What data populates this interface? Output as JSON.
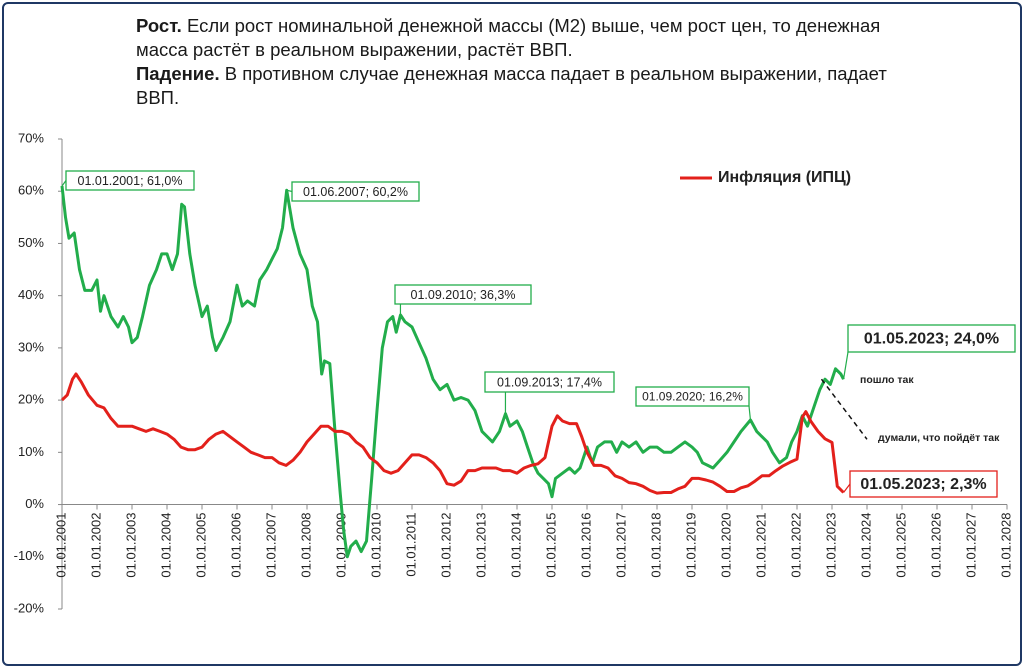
{
  "header": {
    "growth_label": "Рост.",
    "growth_text": "Если рост номинальной денежной массы (М2) выше, чем рост цен,  то денежная масса растёт в реальном выражении, растёт ВВП.",
    "fall_label": "Падение.",
    "fall_text": "В противном случае денежная масса падает в реальном выражении, падает ВВП."
  },
  "chart_data": {
    "type": "line",
    "xlim": [
      2001,
      2028
    ],
    "ylim": [
      -20,
      70
    ],
    "yticks": [
      {
        "value": -20,
        "label": "-20%"
      },
      {
        "value": -10,
        "label": "-10%"
      },
      {
        "value": 0,
        "label": "0%"
      },
      {
        "value": 10,
        "label": "10%"
      },
      {
        "value": 20,
        "label": "20%"
      },
      {
        "value": 30,
        "label": "30%"
      },
      {
        "value": 40,
        "label": "40%"
      },
      {
        "value": 50,
        "label": "50%"
      },
      {
        "value": 60,
        "label": "60%"
      },
      {
        "value": 70,
        "label": "70%"
      }
    ],
    "xticks": [
      {
        "value": 2001,
        "label": "01.01.2001"
      },
      {
        "value": 2002,
        "label": "01.01.2002"
      },
      {
        "value": 2003,
        "label": "01.01.2003"
      },
      {
        "value": 2004,
        "label": "01.01.2004"
      },
      {
        "value": 2005,
        "label": "01.01.2005"
      },
      {
        "value": 2006,
        "label": "01.01.2006"
      },
      {
        "value": 2007,
        "label": "01.01.2007"
      },
      {
        "value": 2008,
        "label": "01.01.2008"
      },
      {
        "value": 2009,
        "label": "01.01.2009"
      },
      {
        "value": 2010,
        "label": "01.01.2010"
      },
      {
        "value": 2011,
        "label": "01.01.2011"
      },
      {
        "value": 2012,
        "label": "01.01.2012"
      },
      {
        "value": 2013,
        "label": "01.01.2013"
      },
      {
        "value": 2014,
        "label": "01.01.2014"
      },
      {
        "value": 2015,
        "label": "01.01.2015"
      },
      {
        "value": 2016,
        "label": "01.01.2016"
      },
      {
        "value": 2017,
        "label": "01.01.2017"
      },
      {
        "value": 2018,
        "label": "01.01.2018"
      },
      {
        "value": 2019,
        "label": "01.01.2019"
      },
      {
        "value": 2020,
        "label": "01.01.2020"
      },
      {
        "value": 2021,
        "label": "01.01.2021"
      },
      {
        "value": 2022,
        "label": "01.01.2022"
      },
      {
        "value": 2023,
        "label": "01.01.2023"
      },
      {
        "value": 2024,
        "label": "01.01.2024"
      },
      {
        "value": 2025,
        "label": "01.01.2025"
      },
      {
        "value": 2026,
        "label": "01.01.2026"
      },
      {
        "value": 2027,
        "label": "01.01.2027"
      },
      {
        "value": 2028,
        "label": "01.01.2028"
      }
    ],
    "series": [
      {
        "color": "#22ad4b",
        "x": [
          2001.0,
          2001.1,
          2001.2,
          2001.35,
          2001.5,
          2001.65,
          2001.85,
          2002.0,
          2002.1,
          2002.2,
          2002.4,
          2002.6,
          2002.75,
          2002.9,
          2003.0,
          2003.15,
          2003.3,
          2003.5,
          2003.7,
          2003.85,
          2004.0,
          2004.15,
          2004.3,
          2004.42,
          2004.5,
          2004.65,
          2004.8,
          2005.0,
          2005.15,
          2005.3,
          2005.4,
          2005.6,
          2005.8,
          2006.0,
          2006.15,
          2006.3,
          2006.5,
          2006.65,
          2006.85,
          2007.0,
          2007.15,
          2007.3,
          2007.42,
          2007.6,
          2007.8,
          2008.0,
          2008.15,
          2008.3,
          2008.42,
          2008.5,
          2008.65,
          2008.8,
          2008.95,
          2009.05,
          2009.15,
          2009.25,
          2009.4,
          2009.55,
          2009.7,
          2009.85,
          2010.0,
          2010.15,
          2010.3,
          2010.45,
          2010.55,
          2010.67,
          2010.8,
          2011.0,
          2011.2,
          2011.4,
          2011.6,
          2011.8,
          2012.0,
          2012.2,
          2012.4,
          2012.6,
          2012.8,
          2013.0,
          2013.15,
          2013.3,
          2013.5,
          2013.67,
          2013.8,
          2014.0,
          2014.15,
          2014.3,
          2014.45,
          2014.6,
          2014.75,
          2014.9,
          2015.0,
          2015.1,
          2015.3,
          2015.5,
          2015.65,
          2015.8,
          2016.0,
          2016.15,
          2016.3,
          2016.5,
          2016.7,
          2016.85,
          2017.0,
          2017.2,
          2017.4,
          2017.6,
          2017.8,
          2018.0,
          2018.2,
          2018.4,
          2018.6,
          2018.8,
          2019.0,
          2019.15,
          2019.3,
          2019.45,
          2019.6,
          2019.8,
          2020.0,
          2020.2,
          2020.4,
          2020.67,
          2020.85,
          2021.0,
          2021.15,
          2021.3,
          2021.5,
          2021.7,
          2021.85,
          2022.0,
          2022.15,
          2022.3,
          2022.5,
          2022.65,
          2022.8,
          2022.95,
          2023.1,
          2023.25,
          2023.33
        ],
        "values": [
          61,
          55,
          51,
          52,
          45,
          41,
          41,
          43,
          37,
          40,
          36,
          34,
          36,
          34,
          31,
          32,
          36,
          42,
          45,
          48,
          48,
          45,
          48,
          57.5,
          57,
          48,
          42,
          36,
          38,
          32,
          29.5,
          32,
          35,
          42,
          38,
          39,
          38,
          43,
          45,
          47,
          49,
          53,
          60.2,
          53,
          48,
          45,
          38,
          35,
          25,
          27.5,
          27,
          14,
          2,
          -5,
          -10,
          -8,
          -7,
          -9,
          -7,
          5,
          18,
          30,
          35,
          36,
          33,
          36.3,
          35,
          34,
          31,
          28,
          24,
          22,
          23,
          20,
          20.5,
          20,
          18,
          14,
          13,
          12,
          14,
          17.4,
          15,
          16,
          14,
          11,
          8,
          6,
          5,
          4,
          1.5,
          5,
          6,
          7,
          6,
          7,
          11,
          8,
          11,
          12,
          12,
          10,
          12,
          11,
          12,
          10,
          11,
          11,
          10,
          10,
          11,
          12,
          11,
          10,
          8,
          7.5,
          7,
          8.5,
          10,
          12,
          14,
          16.2,
          14,
          13,
          12,
          10,
          8,
          9,
          12,
          14,
          17,
          15,
          19,
          22,
          24,
          23,
          26,
          25,
          24
        ]
      },
      {
        "name": "Инфляция (ИПЦ)",
        "color": "#e3201b",
        "x": [
          2001.0,
          2001.15,
          2001.3,
          2001.4,
          2001.55,
          2001.75,
          2002.0,
          2002.2,
          2002.4,
          2002.6,
          2002.8,
          2003.0,
          2003.2,
          2003.4,
          2003.6,
          2003.8,
          2004.0,
          2004.2,
          2004.4,
          2004.6,
          2004.8,
          2005.0,
          2005.2,
          2005.4,
          2005.6,
          2005.8,
          2006.0,
          2006.2,
          2006.4,
          2006.6,
          2006.8,
          2007.0,
          2007.2,
          2007.4,
          2007.6,
          2007.8,
          2008.0,
          2008.2,
          2008.4,
          2008.6,
          2008.8,
          2009.0,
          2009.2,
          2009.4,
          2009.6,
          2009.8,
          2010.0,
          2010.2,
          2010.4,
          2010.6,
          2010.8,
          2011.0,
          2011.2,
          2011.4,
          2011.6,
          2011.8,
          2012.0,
          2012.2,
          2012.4,
          2012.6,
          2012.8,
          2013.0,
          2013.2,
          2013.4,
          2013.6,
          2013.8,
          2014.0,
          2014.2,
          2014.4,
          2014.6,
          2014.8,
          2015.0,
          2015.15,
          2015.3,
          2015.5,
          2015.7,
          2015.85,
          2016.0,
          2016.2,
          2016.4,
          2016.6,
          2016.8,
          2017.0,
          2017.2,
          2017.4,
          2017.6,
          2017.8,
          2018.0,
          2018.2,
          2018.4,
          2018.6,
          2018.8,
          2019.0,
          2019.2,
          2019.4,
          2019.6,
          2019.8,
          2020.0,
          2020.2,
          2020.4,
          2020.6,
          2020.8,
          2021.0,
          2021.2,
          2021.4,
          2021.6,
          2021.8,
          2022.0,
          2022.15,
          2022.25,
          2022.4,
          2022.6,
          2022.8,
          2023.0,
          2023.15,
          2023.33
        ],
        "values": [
          20,
          21,
          24,
          25,
          23.5,
          21,
          19,
          18.5,
          16.5,
          15,
          15,
          15,
          14.5,
          14,
          14.5,
          14,
          13.5,
          12.5,
          11,
          10.5,
          10.5,
          11,
          12.5,
          13.5,
          14,
          13,
          12,
          11,
          10,
          9.5,
          9,
          9,
          8,
          7.5,
          8.5,
          10,
          12,
          13.5,
          15,
          15,
          14,
          14,
          13.5,
          12,
          11,
          9,
          8,
          6.5,
          6,
          6.5,
          8,
          9.5,
          9.5,
          9,
          8,
          6.5,
          4,
          3.7,
          4.5,
          6.5,
          6.5,
          7,
          7,
          7,
          6.5,
          6.5,
          6,
          7,
          7.5,
          7.8,
          9,
          15,
          17,
          16,
          15.5,
          15.5,
          13,
          10,
          7.5,
          7.5,
          7,
          5.5,
          5,
          4.2,
          4,
          3.5,
          2.7,
          2.2,
          2.3,
          2.3,
          3,
          3.5,
          5,
          5,
          4.7,
          4.3,
          3.5,
          2.5,
          2.5,
          3.2,
          3.6,
          4.5,
          5.5,
          5.5,
          6.5,
          7.4,
          8.1,
          8.7,
          16.7,
          17.8,
          15.9,
          14,
          12.6,
          11.9,
          3.5,
          2.3
        ]
      }
    ],
    "annotations": [
      {
        "text": "01.01.2001; 61,0%",
        "x": 2001.0,
        "y": 61,
        "color": "#22ad4b"
      },
      {
        "text": "01.06.2007; 60,2%",
        "x": 2007.42,
        "y": 60.2,
        "color": "#22ad4b"
      },
      {
        "text": "01.09.2010; 36,3%",
        "x": 2010.67,
        "y": 36.3,
        "color": "#22ad4b"
      },
      {
        "text": "01.09.2013; 17,4%",
        "x": 2013.67,
        "y": 17.4,
        "color": "#22ad4b"
      },
      {
        "text": "01.09.2020; 16,2%",
        "x": 2020.67,
        "y": 16.2,
        "color": "#22ad4b"
      },
      {
        "text": "01.05.2023; 24,0%",
        "x": 2023.33,
        "y": 24,
        "color": "#22ad4b"
      },
      {
        "text": "01.05.2023; 2,3%",
        "x": 2023.33,
        "y": 2.3,
        "color": "#e3201b"
      }
    ],
    "projection": {
      "x": [
        2022.7,
        2024
      ],
      "values": [
        24,
        12.5
      ]
    },
    "notes": [
      "пошло так",
      "думали, что пойдёт так"
    ]
  }
}
